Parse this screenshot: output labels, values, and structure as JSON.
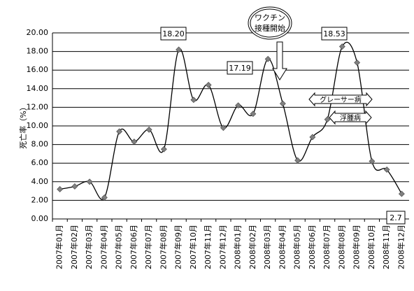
{
  "chart_data": {
    "type": "line",
    "y_label": "死亡率（%）",
    "categories": [
      "2007年01月",
      "2007年02月",
      "2007年03月",
      "2007年04月",
      "2007年05月",
      "2007年06月",
      "2007年07月",
      "2007年08月",
      "2007年09月",
      "2007年10月",
      "2007年11月",
      "2007年12月",
      "2008年01月",
      "2008年02月",
      "2008年03月",
      "2008年04月",
      "2008年05月",
      "2008年06月",
      "2008年07月",
      "2008年08月",
      "2008年09月",
      "2008年10月",
      "2008年11月",
      "2008年12月"
    ],
    "series": [
      {
        "color": "#000000",
        "values": [
          3.2,
          3.5,
          4.0,
          2.3,
          9.4,
          8.3,
          9.6,
          7.5,
          18.2,
          12.8,
          14.4,
          9.8,
          12.2,
          11.3,
          17.19,
          12.4,
          6.3,
          8.8,
          10.7,
          18.53,
          16.8,
          6.2,
          5.3,
          2.7
        ]
      }
    ],
    "marker_color": "#808080",
    "ylim": [
      0,
      20
    ],
    "yticks": [
      {
        "value": 0,
        "label": "0.00"
      },
      {
        "value": 2,
        "label": "2.00"
      },
      {
        "value": 4,
        "label": "4.00"
      },
      {
        "value": 6,
        "label": "6.00"
      },
      {
        "value": 8,
        "label": "8.00"
      },
      {
        "value": 10,
        "label": "10.00"
      },
      {
        "value": 12,
        "label": "12.00"
      },
      {
        "value": 14,
        "label": "14.00"
      },
      {
        "value": 16,
        "label": "16.00"
      },
      {
        "value": 18,
        "label": "18.00"
      },
      {
        "value": 20,
        "label": "20.00"
      }
    ],
    "grid": true,
    "annotations": [
      "18.20",
      "17.19",
      "18.53",
      "2.7",
      "ワクチン",
      "接種開始",
      "グレーサー病",
      "浮腫病"
    ]
  }
}
